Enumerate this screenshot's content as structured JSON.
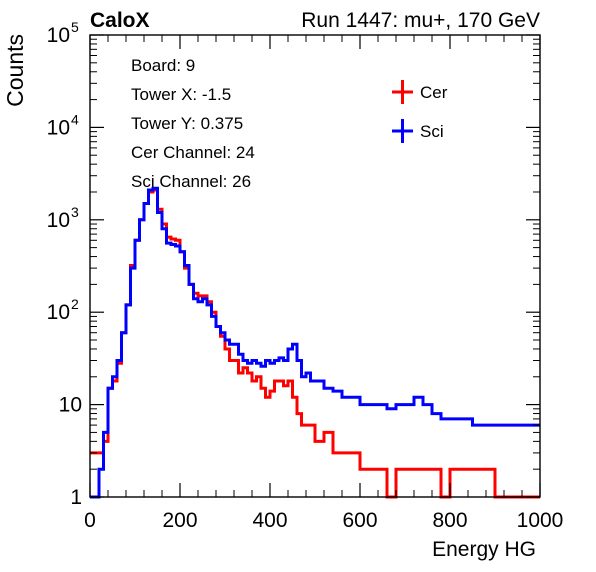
{
  "header": {
    "brand": "CaloX",
    "run_info": "Run 1447: mu+, 170 GeV"
  },
  "info_box": [
    "Board: 9",
    "Tower X: -1.5",
    "Tower Y: 0.375",
    "Cer Channel: 24",
    "Sci Channel: 26"
  ],
  "chart_data": {
    "type": "line",
    "style": "step histogram",
    "xlabel": "Energy HG",
    "ylabel": "Counts",
    "xlim": [
      0,
      1000
    ],
    "ylim": [
      1,
      100000
    ],
    "y_scale": "log",
    "x_ticks": [
      0,
      200,
      400,
      600,
      800,
      1000
    ],
    "y_ticks": [
      {
        "value": 1,
        "label": "1"
      },
      {
        "value": 10,
        "label": "10"
      },
      {
        "value": 100,
        "label": "10",
        "exp": "2"
      },
      {
        "value": 1000,
        "label": "10",
        "exp": "3"
      },
      {
        "value": 10000,
        "label": "10",
        "exp": "4"
      },
      {
        "value": 100000,
        "label": "10",
        "exp": "5"
      }
    ],
    "legend_position": "top-right",
    "series": [
      {
        "name": "Cer",
        "color": "#ff0000",
        "x": [
          0,
          10,
          20,
          30,
          40,
          50,
          60,
          70,
          80,
          90,
          100,
          110,
          120,
          130,
          140,
          150,
          160,
          170,
          180,
          190,
          200,
          210,
          220,
          230,
          240,
          250,
          260,
          270,
          280,
          290,
          300,
          310,
          320,
          330,
          340,
          350,
          360,
          370,
          380,
          390,
          400,
          410,
          420,
          430,
          440,
          450,
          460,
          470,
          480,
          490,
          500,
          520,
          540,
          560,
          580,
          600,
          620,
          640,
          660,
          680,
          700,
          720,
          740,
          760,
          780,
          800,
          850,
          900,
          950,
          1000
        ],
        "values": [
          3,
          3,
          3,
          4,
          15,
          18,
          28,
          60,
          120,
          320,
          600,
          1000,
          1500,
          2000,
          2100,
          1300,
          900,
          650,
          620,
          600,
          450,
          300,
          200,
          160,
          150,
          150,
          130,
          100,
          70,
          55,
          40,
          30,
          30,
          22,
          25,
          22,
          18,
          20,
          15,
          12,
          14,
          18,
          18,
          16,
          18,
          12,
          8,
          6,
          6,
          6,
          4,
          5,
          3,
          3,
          3,
          2,
          2,
          2,
          1,
          2,
          2,
          2,
          2,
          2,
          1,
          2,
          2,
          1,
          1,
          1
        ]
      },
      {
        "name": "Sci",
        "color": "#0000ff",
        "x": [
          0,
          10,
          20,
          30,
          40,
          50,
          60,
          70,
          80,
          90,
          100,
          110,
          120,
          130,
          140,
          150,
          160,
          170,
          180,
          190,
          200,
          210,
          220,
          230,
          240,
          250,
          260,
          270,
          280,
          290,
          300,
          310,
          320,
          330,
          340,
          350,
          360,
          370,
          380,
          390,
          400,
          410,
          420,
          430,
          440,
          450,
          460,
          470,
          480,
          490,
          500,
          520,
          540,
          560,
          580,
          600,
          620,
          640,
          660,
          680,
          700,
          720,
          740,
          760,
          780,
          800,
          850,
          900,
          950,
          1000
        ],
        "values": [
          1,
          1,
          2,
          5,
          15,
          20,
          30,
          60,
          120,
          300,
          600,
          1000,
          1500,
          2100,
          2200,
          1200,
          800,
          560,
          540,
          520,
          450,
          320,
          200,
          140,
          130,
          140,
          120,
          90,
          70,
          60,
          50,
          45,
          45,
          35,
          30,
          28,
          30,
          28,
          26,
          30,
          28,
          30,
          32,
          30,
          40,
          45,
          30,
          20,
          22,
          18,
          18,
          15,
          14,
          12,
          12,
          10,
          10,
          10,
          9,
          10,
          10,
          12,
          10,
          8,
          7,
          7,
          6,
          6,
          6,
          6
        ]
      }
    ]
  }
}
